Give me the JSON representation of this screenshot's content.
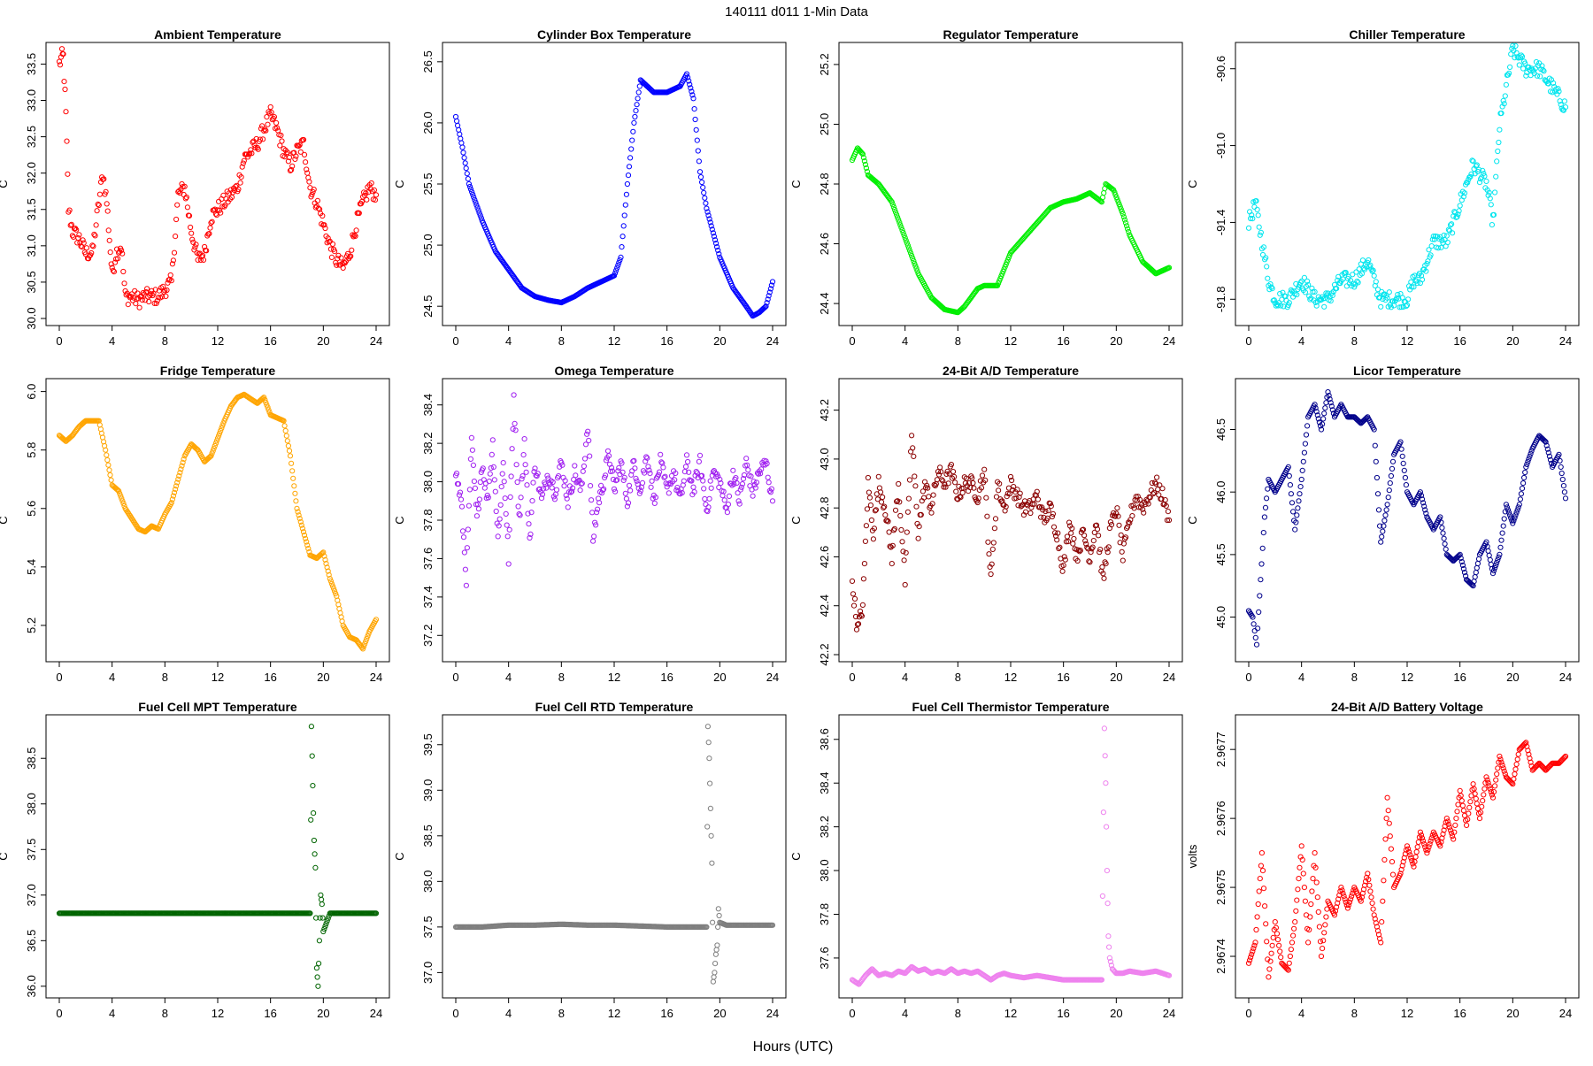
{
  "page": {
    "title": "140111   d011   1-Min Data",
    "xlabel": "Hours (UTC)"
  },
  "chart_data": [
    {
      "type": "scatter",
      "title": "Ambient Temperature",
      "xlabel": "Hours (UTC)",
      "ylabel": "C",
      "color": "#ff0000",
      "xlim": [
        0,
        24
      ],
      "ylim": [
        30.0,
        33.7
      ],
      "xticks": [
        0,
        4,
        8,
        12,
        16,
        20,
        24
      ],
      "yticks": [
        "30.0",
        "30.5",
        "31.0",
        "31.5",
        "32.0",
        "32.5",
        "33.0",
        "33.5"
      ],
      "x": [
        0,
        0.2,
        0.3,
        0.5,
        0.7,
        1,
        1.5,
        2,
        2.5,
        3,
        3.3,
        3.6,
        4,
        4.3,
        4.7,
        5,
        5.5,
        6,
        6.5,
        7,
        7.5,
        8,
        8.5,
        9,
        9.5,
        10,
        10.5,
        11,
        11.5,
        12,
        12.5,
        13,
        13.5,
        14,
        14.5,
        15,
        15.5,
        16,
        16.5,
        17,
        17.5,
        18,
        18.5,
        19,
        19.5,
        20,
        20.5,
        21,
        21.5,
        22,
        22.5,
        23,
        23.5,
        24
      ],
      "y": [
        33.5,
        33.6,
        33.6,
        32.8,
        31.5,
        31.2,
        31.1,
        30.9,
        30.9,
        31.6,
        32.0,
        31.6,
        30.6,
        30.9,
        31.0,
        30.3,
        30.3,
        30.25,
        30.3,
        30.3,
        30.3,
        30.4,
        30.5,
        31.7,
        31.8,
        31.2,
        30.8,
        30.9,
        31.4,
        31.5,
        31.6,
        31.7,
        31.8,
        32.2,
        32.3,
        32.4,
        32.6,
        32.8,
        32.6,
        32.3,
        32.1,
        32.3,
        32.4,
        31.8,
        31.6,
        31.3,
        31.0,
        30.8,
        30.7,
        30.9,
        31.3,
        31.6,
        31.8,
        31.7
      ]
    },
    {
      "type": "scatter",
      "title": "Cylinder Box Temperature",
      "xlabel": "Hours (UTC)",
      "ylabel": "C",
      "color": "#0000ff",
      "xlim": [
        0,
        24
      ],
      "ylim": [
        24.4,
        26.6
      ],
      "xticks": [
        0,
        4,
        8,
        12,
        16,
        20,
        24
      ],
      "yticks": [
        "24.5",
        "25.0",
        "25.5",
        "26.0",
        "26.5"
      ],
      "x": [
        0,
        0.5,
        1,
        2,
        3,
        4,
        5,
        6,
        7,
        8,
        9,
        10,
        11,
        12,
        12.5,
        13,
        13.5,
        14,
        15,
        16,
        17,
        17.5,
        18,
        18.5,
        19,
        20,
        21,
        22,
        22.5,
        23,
        23.5,
        24
      ],
      "y": [
        26.05,
        25.8,
        25.5,
        25.2,
        24.95,
        24.8,
        24.65,
        24.58,
        24.55,
        24.53,
        24.58,
        24.65,
        24.7,
        24.75,
        24.9,
        25.5,
        26.0,
        26.35,
        26.25,
        26.25,
        26.3,
        26.4,
        26.2,
        25.6,
        25.3,
        24.9,
        24.65,
        24.5,
        24.42,
        24.45,
        24.5,
        24.7
      ]
    },
    {
      "type": "scatter",
      "title": "Regulator Temperature",
      "xlabel": "Hours (UTC)",
      "ylabel": "C",
      "color": "#00ee00",
      "xlim": [
        0,
        24
      ],
      "ylim": [
        24.35,
        25.25
      ],
      "xticks": [
        0,
        4,
        8,
        12,
        16,
        20,
        24
      ],
      "yticks": [
        "24.4",
        "24.6",
        "24.8",
        "25.0",
        "25.2"
      ],
      "x": [
        0,
        0.4,
        0.8,
        1.2,
        2,
        3,
        4,
        5,
        6,
        7,
        8,
        8.5,
        9,
        9.5,
        10,
        11,
        12,
        13,
        14,
        15,
        16,
        17,
        18,
        18.9,
        19.2,
        19.8,
        20.5,
        21,
        22,
        23,
        24
      ],
      "y": [
        24.88,
        24.92,
        24.9,
        24.83,
        24.8,
        24.74,
        24.62,
        24.5,
        24.42,
        24.38,
        24.37,
        24.39,
        24.42,
        24.45,
        24.46,
        24.46,
        24.57,
        24.62,
        24.67,
        24.72,
        24.74,
        24.75,
        24.77,
        24.74,
        24.8,
        24.78,
        24.7,
        24.63,
        24.54,
        24.5,
        24.52
      ]
    },
    {
      "type": "scatter",
      "title": "Chiller Temperature",
      "xlabel": "Hours (UTC)",
      "ylabel": "C",
      "color": "#00e5ee",
      "xlim": [
        0,
        24
      ],
      "ylim": [
        -91.9,
        -90.5
      ],
      "xticks": [
        0,
        4,
        8,
        12,
        16,
        20,
        24
      ],
      "yticks": [
        "-91.8",
        "-91.4",
        "-91.0",
        "-90.6"
      ],
      "x": [
        0,
        0.5,
        1,
        1.5,
        2,
        3,
        4,
        5,
        6,
        7,
        8,
        9,
        10,
        11,
        12,
        12.5,
        13,
        13.5,
        14,
        15,
        16,
        17,
        18,
        18.5,
        19,
        19.5,
        20,
        21,
        22,
        23,
        24
      ],
      "y": [
        -91.4,
        -91.3,
        -91.5,
        -91.7,
        -91.8,
        -91.8,
        -91.7,
        -91.8,
        -91.8,
        -91.7,
        -91.7,
        -91.6,
        -91.8,
        -91.8,
        -91.8,
        -91.7,
        -91.7,
        -91.6,
        -91.5,
        -91.5,
        -91.3,
        -91.1,
        -91.2,
        -91.4,
        -90.9,
        -90.7,
        -90.5,
        -90.6,
        -90.6,
        -90.7,
        -90.8
      ]
    },
    {
      "type": "scatter",
      "title": "Fridge Temperature",
      "xlabel": "Hours (UTC)",
      "ylabel": "C",
      "color": "#ffa500",
      "xlim": [
        0,
        24
      ],
      "ylim": [
        5.1,
        6.02
      ],
      "xticks": [
        0,
        4,
        8,
        12,
        16,
        20,
        24
      ],
      "yticks": [
        "5.2",
        "5.4",
        "5.6",
        "5.8",
        "6.0"
      ],
      "x": [
        0,
        0.5,
        1,
        1.5,
        2,
        3,
        3.5,
        4,
        4.5,
        5,
        6,
        6.5,
        7,
        7.5,
        8,
        8.5,
        9,
        9.5,
        10,
        10.5,
        11,
        11.5,
        12,
        12.5,
        13,
        13.5,
        14,
        15,
        15.5,
        16,
        17,
        17.5,
        18,
        18.5,
        19,
        19.5,
        20,
        20.5,
        21,
        21.5,
        22,
        22.5,
        23,
        23.5,
        24
      ],
      "y": [
        5.85,
        5.83,
        5.85,
        5.88,
        5.9,
        5.9,
        5.8,
        5.68,
        5.66,
        5.6,
        5.53,
        5.52,
        5.54,
        5.53,
        5.58,
        5.62,
        5.7,
        5.78,
        5.82,
        5.8,
        5.76,
        5.78,
        5.84,
        5.9,
        5.95,
        5.98,
        5.99,
        5.96,
        5.98,
        5.92,
        5.9,
        5.78,
        5.6,
        5.52,
        5.44,
        5.43,
        5.45,
        5.36,
        5.3,
        5.2,
        5.16,
        5.15,
        5.12,
        5.18,
        5.22
      ]
    },
    {
      "type": "scatter",
      "title": "Omega Temperature",
      "xlabel": "Hours (UTC)",
      "ylabel": "C",
      "color": "#a020f0",
      "xlim": [
        0,
        24
      ],
      "ylim": [
        37.1,
        38.5
      ],
      "xticks": [
        0,
        4,
        8,
        12,
        16,
        20,
        24
      ],
      "yticks": [
        "37.2",
        "37.4",
        "37.6",
        "37.8",
        "38.0",
        "38.2",
        "38.4"
      ],
      "x": [
        0,
        0.4,
        0.8,
        1.2,
        1.6,
        2,
        2.4,
        2.8,
        3.2,
        3.6,
        4,
        4.4,
        4.8,
        5.2,
        5.6,
        6,
        6.5,
        7,
        7.5,
        8,
        8.5,
        9,
        9.5,
        10,
        10.4,
        10.8,
        11.2,
        11.6,
        12,
        12.5,
        13,
        13.5,
        14,
        14.5,
        15,
        15.5,
        16,
        16.5,
        17,
        17.5,
        18,
        18.5,
        19,
        19.5,
        20,
        20.5,
        21,
        21.5,
        22,
        22.5,
        23,
        23.5,
        24
      ],
      "y": [
        38.05,
        37.9,
        37.5,
        38.2,
        37.8,
        38.1,
        37.9,
        38.2,
        37.7,
        38.1,
        37.6,
        38.45,
        37.8,
        38.2,
        37.7,
        38.1,
        37.9,
        38.05,
        37.95,
        38.1,
        37.9,
        38.05,
        37.95,
        38.3,
        37.7,
        37.9,
        38.0,
        38.15,
        37.95,
        38.1,
        37.9,
        38.1,
        37.95,
        38.15,
        37.9,
        38.1,
        37.95,
        38.05,
        37.9,
        38.1,
        37.95,
        38.1,
        37.85,
        38.05,
        38.0,
        37.85,
        38.05,
        37.9,
        38.1,
        37.95,
        38.05,
        38.1,
        37.9
      ]
    },
    {
      "type": "scatter",
      "title": "24-Bit A/D Temperature",
      "xlabel": "Hours (UTC)",
      "ylabel": "C",
      "color": "#8b0000",
      "xlim": [
        0,
        24
      ],
      "ylim": [
        42.2,
        43.3
      ],
      "xticks": [
        0,
        4,
        8,
        12,
        16,
        20,
        24
      ],
      "yticks": [
        "42.2",
        "42.4",
        "42.6",
        "42.8",
        "43.0",
        "43.2"
      ],
      "x": [
        0,
        0.4,
        0.8,
        1.2,
        1.6,
        2,
        2.5,
        3,
        3.5,
        4,
        4.5,
        5,
        5.5,
        6,
        6.5,
        7,
        7.5,
        8,
        8.5,
        9,
        9.5,
        10,
        10.5,
        11,
        11.5,
        12,
        12.5,
        13,
        13.5,
        14,
        14.5,
        15,
        15.5,
        16,
        16.5,
        17,
        17.5,
        18,
        18.5,
        19,
        19.5,
        20,
        20.5,
        21,
        21.5,
        22,
        22.5,
        23,
        23.5,
        24
      ],
      "y": [
        42.5,
        42.3,
        42.4,
        42.9,
        42.7,
        42.9,
        42.8,
        42.6,
        42.9,
        42.5,
        43.1,
        42.7,
        42.9,
        42.8,
        42.95,
        42.9,
        42.95,
        42.85,
        42.9,
        42.9,
        42.85,
        42.95,
        42.5,
        42.9,
        42.8,
        42.9,
        42.85,
        42.8,
        42.8,
        42.85,
        42.75,
        42.8,
        42.7,
        42.55,
        42.75,
        42.6,
        42.7,
        42.6,
        42.75,
        42.5,
        42.7,
        42.8,
        42.6,
        42.75,
        42.85,
        42.8,
        42.85,
        42.9,
        42.85,
        42.75
      ]
    },
    {
      "type": "scatter",
      "title": "Licor Temperature",
      "xlabel": "Hours (UTC)",
      "ylabel": "C",
      "color": "#00008b",
      "xlim": [
        0,
        24
      ],
      "ylim": [
        44.7,
        46.85
      ],
      "xticks": [
        0,
        4,
        8,
        12,
        16,
        20,
        24
      ],
      "yticks": [
        "45.0",
        "45.5",
        "46.0",
        "46.5"
      ],
      "x": [
        0,
        0.3,
        0.6,
        0.9,
        1.2,
        1.5,
        2,
        2.5,
        3,
        3.5,
        4,
        4.5,
        5,
        5.5,
        6,
        6.5,
        7,
        7.5,
        8,
        8.5,
        9,
        9.5,
        10,
        10.5,
        11,
        11.5,
        12,
        12.5,
        13,
        13.5,
        14,
        14.5,
        15,
        15.5,
        16,
        16.5,
        17,
        17.5,
        18,
        18.5,
        19,
        19.5,
        20,
        20.5,
        21,
        21.5,
        22,
        22.5,
        23,
        23.5,
        24
      ],
      "y": [
        45.05,
        45.0,
        44.78,
        45.3,
        45.8,
        46.1,
        46.0,
        46.1,
        46.2,
        45.7,
        46.1,
        46.6,
        46.7,
        46.5,
        46.8,
        46.6,
        46.7,
        46.6,
        46.6,
        46.55,
        46.6,
        46.5,
        45.6,
        45.9,
        46.3,
        46.4,
        46.0,
        45.9,
        46.0,
        45.8,
        45.7,
        45.8,
        45.5,
        45.45,
        45.5,
        45.3,
        45.25,
        45.5,
        45.6,
        45.35,
        45.5,
        45.9,
        45.75,
        45.9,
        46.2,
        46.35,
        46.45,
        46.4,
        46.2,
        46.3,
        45.95
      ]
    },
    {
      "type": "scatter",
      "title": "Fuel Cell MPT Temperature",
      "xlabel": "Hours (UTC)",
      "ylabel": "C",
      "color": "#006400",
      "xlim": [
        0,
        24
      ],
      "ylim": [
        35.95,
        38.9
      ],
      "xticks": [
        0,
        4,
        8,
        12,
        16,
        20,
        24
      ],
      "yticks": [
        "36.0",
        "36.5",
        "37.0",
        "37.5",
        "38.0",
        "38.5"
      ],
      "x": [
        0,
        2,
        4,
        6,
        8,
        10,
        12,
        14,
        16,
        18,
        19,
        19.1,
        19.2,
        19.3,
        19.4,
        19.5,
        19.6,
        19.7,
        19.8,
        19.9,
        20,
        20.5,
        22,
        24
      ],
      "y": [
        36.8,
        36.8,
        36.8,
        36.8,
        36.8,
        36.8,
        36.8,
        36.8,
        36.8,
        36.8,
        36.8,
        38.85,
        38.2,
        37.6,
        37.3,
        36.2,
        36.0,
        36.5,
        37.0,
        36.9,
        36.6,
        36.8,
        36.8,
        36.8
      ]
    },
    {
      "type": "scatter",
      "title": "Fuel Cell RTD Temperature",
      "xlabel": "Hours (UTC)",
      "ylabel": "C",
      "color": "#7f7f7f",
      "xlim": [
        0,
        24
      ],
      "ylim": [
        36.8,
        39.75
      ],
      "xticks": [
        0,
        4,
        8,
        12,
        16,
        20,
        24
      ],
      "yticks": [
        "37.0",
        "37.5",
        "38.0",
        "38.5",
        "39.0",
        "39.5"
      ],
      "x": [
        0,
        2,
        4,
        6,
        8,
        10,
        12,
        14,
        16,
        18,
        19,
        19.1,
        19.2,
        19.3,
        19.4,
        19.5,
        19.6,
        19.7,
        19.8,
        19.9,
        20,
        20.5,
        22,
        24
      ],
      "y": [
        37.5,
        37.5,
        37.52,
        37.52,
        37.53,
        37.52,
        37.52,
        37.51,
        37.5,
        37.5,
        37.5,
        39.7,
        39.35,
        38.8,
        38.2,
        36.9,
        37.0,
        37.2,
        37.3,
        37.7,
        37.55,
        37.52,
        37.52,
        37.52
      ]
    },
    {
      "type": "scatter",
      "title": "Fuel Cell Thermistor Temperature",
      "xlabel": "Hours (UTC)",
      "ylabel": "C",
      "color": "#ee82ee",
      "xlim": [
        0,
        24
      ],
      "ylim": [
        37.45,
        38.68
      ],
      "xticks": [
        0,
        4,
        8,
        12,
        16,
        20,
        24
      ],
      "yticks": [
        "37.6",
        "37.8",
        "38.0",
        "38.2",
        "38.4",
        "38.6"
      ],
      "x": [
        0,
        0.5,
        1,
        1.5,
        2,
        2.5,
        3,
        3.5,
        4,
        4.5,
        5,
        5.5,
        6,
        6.5,
        7,
        7.5,
        8,
        8.5,
        9,
        9.5,
        10,
        10.5,
        11,
        11.5,
        12,
        13,
        14,
        15,
        16,
        17,
        18,
        18.9,
        19.1,
        19.2,
        19.3,
        19.4,
        19.5,
        19.7,
        20,
        20.5,
        21,
        22,
        23,
        24
      ],
      "y": [
        37.5,
        37.48,
        37.52,
        37.55,
        37.52,
        37.53,
        37.52,
        37.54,
        37.53,
        37.56,
        37.54,
        37.55,
        37.53,
        37.54,
        37.53,
        37.55,
        37.53,
        37.54,
        37.53,
        37.54,
        37.52,
        37.5,
        37.52,
        37.53,
        37.52,
        37.51,
        37.52,
        37.51,
        37.5,
        37.5,
        37.5,
        37.5,
        38.65,
        38.4,
        38.0,
        37.7,
        37.6,
        37.55,
        37.53,
        37.53,
        37.54,
        37.53,
        37.54,
        37.52
      ]
    },
    {
      "type": "scatter",
      "title": "24-Bit A/D Battery Voltage",
      "xlabel": "Hours (UTC)",
      "ylabel": "volts",
      "color": "#ff0000",
      "xlim": [
        0,
        24
      ],
      "ylim": [
        2.96735,
        2.96774
      ],
      "xticks": [
        0,
        4,
        8,
        12,
        16,
        20,
        24
      ],
      "yticks": [
        "2.9674",
        "2.9675",
        "2.9676",
        "2.9677"
      ],
      "x": [
        0,
        0.5,
        1,
        1.5,
        2,
        2.5,
        3,
        3.5,
        4,
        4.5,
        5,
        5.5,
        6,
        6.5,
        7,
        7.5,
        8,
        8.5,
        9,
        9.5,
        10,
        10.5,
        11,
        11.5,
        12,
        12.5,
        13,
        13.5,
        14,
        14.5,
        15,
        15.5,
        16,
        16.5,
        17,
        17.5,
        18,
        18.5,
        19,
        19.5,
        20,
        20.5,
        21,
        21.5,
        22,
        22.5,
        23,
        23.5,
        24
      ],
      "y": [
        2.96739,
        2.96742,
        2.96755,
        2.96737,
        2.96745,
        2.96739,
        2.96738,
        2.96745,
        2.96756,
        2.96742,
        2.96755,
        2.9674,
        2.96748,
        2.96746,
        2.9675,
        2.96747,
        2.9675,
        2.96748,
        2.96752,
        2.96746,
        2.96742,
        2.96763,
        2.9675,
        2.96752,
        2.96756,
        2.96753,
        2.96758,
        2.96755,
        2.96758,
        2.96756,
        2.9676,
        2.96757,
        2.96764,
        2.96759,
        2.96765,
        2.9676,
        2.96766,
        2.96763,
        2.96769,
        2.96766,
        2.96765,
        2.9677,
        2.96771,
        2.96767,
        2.96768,
        2.96767,
        2.96768,
        2.96768,
        2.96769
      ]
    }
  ]
}
